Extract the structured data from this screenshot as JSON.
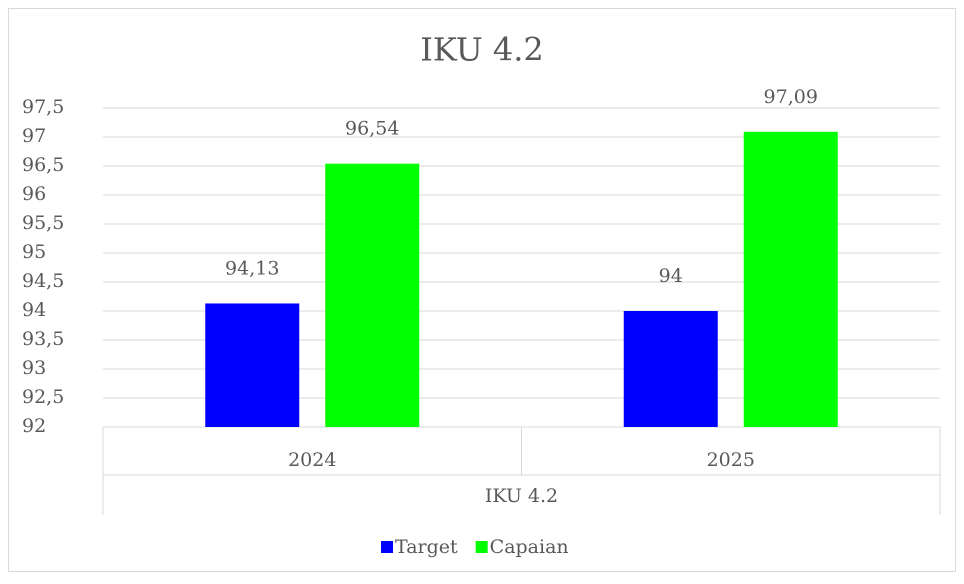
{
  "chart_data": {
    "type": "bar",
    "title": "IKU 4.2",
    "categories": [
      "2024",
      "2025"
    ],
    "group_label": "IKU 4.2",
    "series": [
      {
        "name": "Target",
        "color": "#0000ff",
        "values": [
          94.13,
          94
        ],
        "value_labels": [
          "94,13",
          "94"
        ]
      },
      {
        "name": "Capaian",
        "color": "#00ff00",
        "values": [
          96.54,
          97.09
        ],
        "value_labels": [
          "96,54",
          "97,09"
        ]
      }
    ],
    "ylim": [
      92,
      97.5
    ],
    "yticks": [
      92,
      {
        "value": 92.5,
        "label": "92,5"
      },
      93,
      {
        "value": 93.5,
        "label": "93,5"
      },
      94,
      {
        "value": 94.5,
        "label": "94,5"
      },
      95,
      {
        "value": 95.5,
        "label": "95,5"
      },
      96,
      {
        "value": 96.5,
        "label": "96,5"
      },
      97,
      {
        "value": 97.5,
        "label": "97,5"
      }
    ],
    "grid": true,
    "legend": "bottom"
  }
}
